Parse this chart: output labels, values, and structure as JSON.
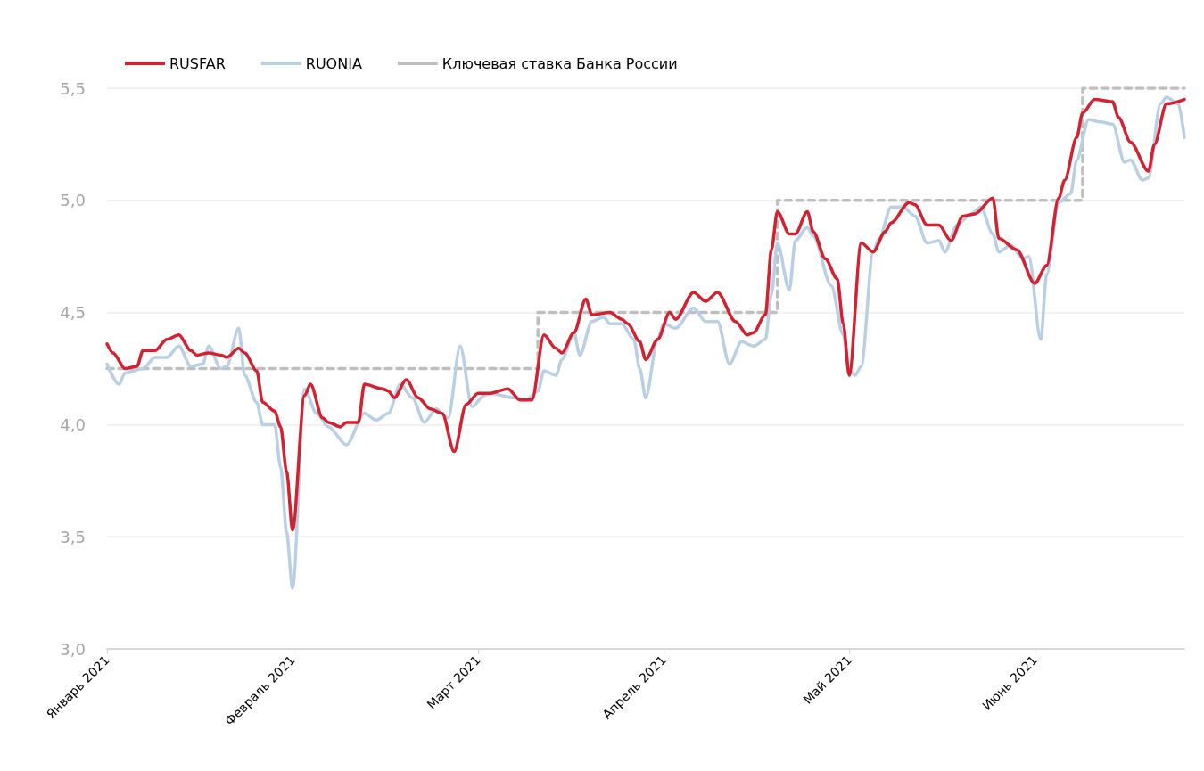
{
  "chart_data": {
    "type": "line",
    "legend": "top left",
    "grid": "y",
    "marker": "none",
    "xlim": [
      "2021-01-01",
      "2021-06-30"
    ],
    "xticks": [
      {
        "value": "2021-01-01",
        "label": "Январь 2021"
      },
      {
        "value": "2021-02-01",
        "label": "Февраль 2021"
      },
      {
        "value": "2021-03-04",
        "label": "Март 2021"
      },
      {
        "value": "2021-04-04",
        "label": "Апрель 2021"
      },
      {
        "value": "2021-05-05",
        "label": "Май 2021"
      },
      {
        "value": "2021-06-05",
        "label": "Июнь 2021"
      }
    ],
    "ylim": [
      3,
      5.5
    ],
    "yticks": [
      {
        "value": 3,
        "label": "3,0"
      },
      {
        "value": 3.5,
        "label": "3,5"
      },
      {
        "value": 4,
        "label": "4,0"
      },
      {
        "value": 4.5,
        "label": "4,5"
      },
      {
        "value": 5,
        "label": "5,0"
      },
      {
        "value": 5.5,
        "label": "5,5"
      }
    ],
    "series": [
      {
        "name": "RUSFAR",
        "color": "#d5202f",
        "line_style": "solid",
        "x": [
          "2021-01-01",
          "2021-01-02",
          "2021-01-04",
          "2021-01-06",
          "2021-01-07",
          "2021-01-09",
          "2021-01-11",
          "2021-01-13",
          "2021-01-15",
          "2021-01-16",
          "2021-01-18",
          "2021-01-20",
          "2021-01-21",
          "2021-01-23",
          "2021-01-24",
          "2021-01-26",
          "2021-01-27",
          "2021-01-29",
          "2021-01-30",
          "2021-01-31",
          "2021-02-01",
          "2021-02-03",
          "2021-02-04",
          "2021-02-06",
          "2021-02-07",
          "2021-02-09",
          "2021-02-10",
          "2021-02-12",
          "2021-02-13",
          "2021-02-16",
          "2021-02-17",
          "2021-02-18",
          "2021-02-20",
          "2021-02-22",
          "2021-02-24",
          "2021-02-26",
          "2021-02-28",
          "2021-03-02",
          "2021-03-04",
          "2021-03-06",
          "2021-03-09",
          "2021-03-11",
          "2021-03-13",
          "2021-03-15",
          "2021-03-17",
          "2021-03-18",
          "2021-03-20",
          "2021-03-22",
          "2021-03-23",
          "2021-03-26",
          "2021-03-28",
          "2021-03-29",
          "2021-03-31",
          "2021-04-01",
          "2021-04-03",
          "2021-04-05",
          "2021-04-06",
          "2021-04-09",
          "2021-04-11",
          "2021-04-13",
          "2021-04-16",
          "2021-04-18",
          "2021-04-19",
          "2021-04-21",
          "2021-04-22",
          "2021-04-23",
          "2021-04-25",
          "2021-04-26",
          "2021-04-28",
          "2021-04-29",
          "2021-05-01",
          "2021-05-03",
          "2021-05-04",
          "2021-05-05",
          "2021-05-07",
          "2021-05-09",
          "2021-05-11",
          "2021-05-12",
          "2021-05-15",
          "2021-05-16",
          "2021-05-18",
          "2021-05-20",
          "2021-05-22",
          "2021-05-24",
          "2021-05-26",
          "2021-05-29",
          "2021-05-30",
          "2021-06-02",
          "2021-06-05",
          "2021-06-07",
          "2021-06-09",
          "2021-06-10",
          "2021-06-12",
          "2021-06-13",
          "2021-06-15",
          "2021-06-18",
          "2021-06-19",
          "2021-06-21",
          "2021-06-24",
          "2021-06-25",
          "2021-06-27",
          "2021-06-30"
        ],
        "values": [
          4.36,
          4.32,
          4.25,
          4.26,
          4.33,
          4.33,
          4.38,
          4.4,
          4.33,
          4.31,
          4.32,
          4.31,
          4.3,
          4.34,
          4.32,
          4.24,
          4.1,
          4.06,
          3.99,
          3.79,
          3.53,
          4.13,
          4.18,
          4.03,
          4.01,
          3.99,
          4.01,
          4.01,
          4.18,
          4.16,
          4.15,
          4.12,
          4.2,
          4.12,
          4.07,
          4.05,
          3.88,
          4.09,
          4.14,
          4.14,
          4.16,
          4.11,
          4.11,
          4.4,
          4.34,
          4.32,
          4.41,
          4.56,
          4.49,
          4.5,
          4.47,
          4.45,
          4.37,
          4.29,
          4.38,
          4.5,
          4.47,
          4.59,
          4.55,
          4.59,
          4.46,
          4.4,
          4.41,
          4.49,
          4.78,
          4.95,
          4.85,
          4.85,
          4.95,
          4.86,
          4.74,
          4.65,
          4.45,
          4.22,
          4.81,
          4.77,
          4.86,
          4.9,
          4.99,
          4.98,
          4.89,
          4.89,
          4.82,
          4.93,
          4.94,
          5.01,
          4.83,
          4.78,
          4.63,
          4.71,
          5.01,
          5.09,
          5.28,
          5.39,
          5.45,
          5.44,
          5.37,
          5.26,
          5.13,
          5.25,
          5.43,
          5.45
        ]
      },
      {
        "name": "RUONIA",
        "color": "#b8cfe6",
        "line_style": "solid",
        "x": [
          "2021-01-01",
          "2021-01-03",
          "2021-01-04",
          "2021-01-07",
          "2021-01-09",
          "2021-01-11",
          "2021-01-13",
          "2021-01-15",
          "2021-01-17",
          "2021-01-18",
          "2021-01-20",
          "2021-01-21",
          "2021-01-23",
          "2021-01-24",
          "2021-01-26",
          "2021-01-27",
          "2021-01-29",
          "2021-01-30",
          "2021-01-31",
          "2021-02-01",
          "2021-02-03",
          "2021-02-05",
          "2021-02-07",
          "2021-02-10",
          "2021-02-13",
          "2021-02-15",
          "2021-02-17",
          "2021-02-19",
          "2021-02-21",
          "2021-02-23",
          "2021-02-25",
          "2021-02-27",
          "2021-03-01",
          "2021-03-03",
          "2021-03-05",
          "2021-03-06",
          "2021-03-10",
          "2021-03-12",
          "2021-03-14",
          "2021-03-15",
          "2021-03-17",
          "2021-03-18",
          "2021-03-20",
          "2021-03-21",
          "2021-03-23",
          "2021-03-25",
          "2021-03-26",
          "2021-03-28",
          "2021-03-30",
          "2021-03-31",
          "2021-04-01",
          "2021-04-03",
          "2021-04-04",
          "2021-04-06",
          "2021-04-09",
          "2021-04-11",
          "2021-04-13",
          "2021-04-15",
          "2021-04-17",
          "2021-04-19",
          "2021-04-21",
          "2021-04-22",
          "2021-04-23",
          "2021-04-25",
          "2021-04-26",
          "2021-04-28",
          "2021-04-29",
          "2021-05-02",
          "2021-05-04",
          "2021-05-05",
          "2021-05-06",
          "2021-05-07",
          "2021-05-09",
          "2021-05-10",
          "2021-05-12",
          "2021-05-14",
          "2021-05-16",
          "2021-05-18",
          "2021-05-20",
          "2021-05-21",
          "2021-05-23",
          "2021-05-25",
          "2021-05-27",
          "2021-05-29",
          "2021-05-30",
          "2021-06-01",
          "2021-06-03",
          "2021-06-04",
          "2021-06-06",
          "2021-06-07",
          "2021-06-09",
          "2021-06-11",
          "2021-06-12",
          "2021-06-14",
          "2021-06-16",
          "2021-06-18",
          "2021-06-20",
          "2021-06-21",
          "2021-06-23",
          "2021-06-24",
          "2021-06-26",
          "2021-06-27",
          "2021-06-29",
          "2021-06-30"
        ],
        "values": [
          4.27,
          4.18,
          4.23,
          4.25,
          4.3,
          4.3,
          4.35,
          4.26,
          4.27,
          4.35,
          4.25,
          4.26,
          4.43,
          4.22,
          4.1,
          4.0,
          4.0,
          3.81,
          3.52,
          3.27,
          4.16,
          4.05,
          3.99,
          3.91,
          4.05,
          4.02,
          4.05,
          4.18,
          4.12,
          4.01,
          4.07,
          4.03,
          4.35,
          4.08,
          4.13,
          4.14,
          4.12,
          4.11,
          4.15,
          4.24,
          4.22,
          4.29,
          4.41,
          4.31,
          4.46,
          4.48,
          4.45,
          4.45,
          4.38,
          4.25,
          4.12,
          4.38,
          4.45,
          4.43,
          4.52,
          4.46,
          4.46,
          4.27,
          4.37,
          4.35,
          4.38,
          4.58,
          4.81,
          4.6,
          4.82,
          4.88,
          4.84,
          4.62,
          4.4,
          4.24,
          4.22,
          4.26,
          4.77,
          4.83,
          4.97,
          4.97,
          4.93,
          4.81,
          4.82,
          4.77,
          4.89,
          4.93,
          4.97,
          4.85,
          4.77,
          4.8,
          4.74,
          4.75,
          4.38,
          4.67,
          4.99,
          5.03,
          5.18,
          5.36,
          5.35,
          5.34,
          5.17,
          5.18,
          5.09,
          5.1,
          5.43,
          5.46,
          5.43,
          5.28
        ]
      },
      {
        "name": "Ключевая ставка Банка России",
        "type": "step",
        "color": "#bfbfbf",
        "line_style": "dashed",
        "x": [
          "2021-01-01",
          "2021-03-14",
          "2021-04-23",
          "2021-06-13",
          "2021-06-30"
        ],
        "values": [
          4.25,
          4.5,
          5.0,
          5.5,
          5.5
        ]
      }
    ]
  }
}
